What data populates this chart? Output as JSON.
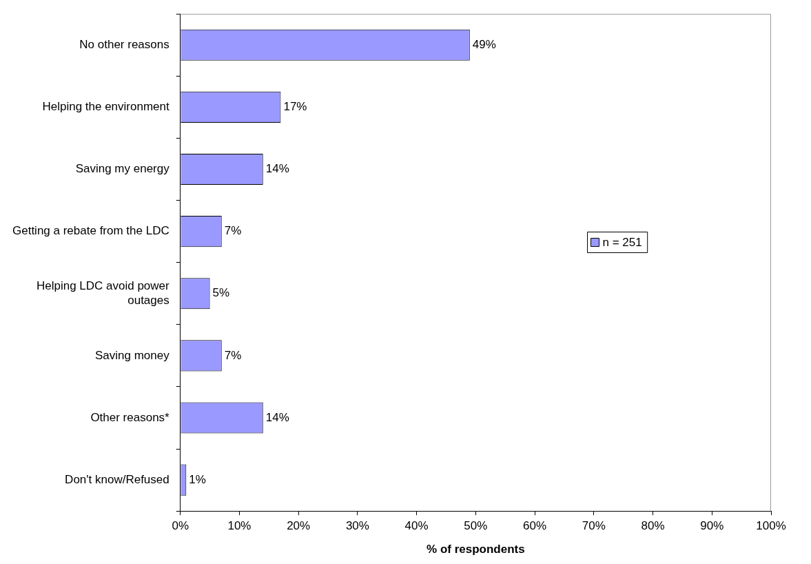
{
  "chart_data": {
    "type": "bar",
    "orientation": "horizontal",
    "xlabel": "% of respondents",
    "categories": [
      "No other reasons",
      "Helping the environment",
      "Saving my energy",
      "Getting a rebate from the LDC",
      "Helping LDC avoid power outages",
      "Saving money",
      "Other reasons*",
      "Don't know/Refused"
    ],
    "series": [
      {
        "name": "n = 251",
        "color": "#9999ff",
        "values": [
          49,
          17,
          14,
          7,
          5,
          7,
          14,
          1
        ],
        "value_labels": [
          "49%",
          "17%",
          "14%",
          "7%",
          "5%",
          "7%",
          "14%",
          "1%"
        ]
      }
    ],
    "xlim": [
      0,
      100
    ],
    "xticks": [
      {
        "value": 0,
        "label": "0%"
      },
      {
        "value": 10,
        "label": "10%"
      },
      {
        "value": 20,
        "label": "20%"
      },
      {
        "value": 30,
        "label": "30%"
      },
      {
        "value": 40,
        "label": "40%"
      },
      {
        "value": 50,
        "label": "50%"
      },
      {
        "value": 60,
        "label": "60%"
      },
      {
        "value": 70,
        "label": "70%"
      },
      {
        "value": 80,
        "label": "80%"
      },
      {
        "value": 90,
        "label": "90%"
      },
      {
        "value": 100,
        "label": "100%"
      }
    ],
    "grid": false,
    "legend": "right"
  }
}
